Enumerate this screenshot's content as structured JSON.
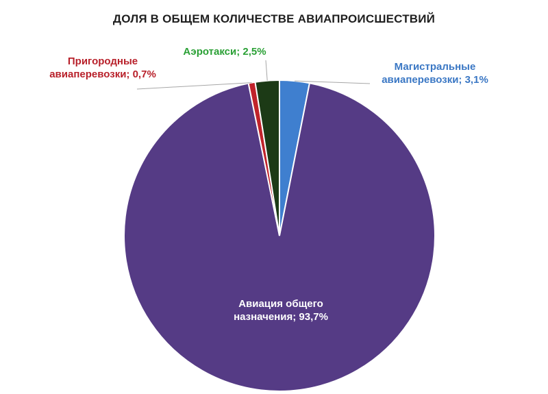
{
  "chart_data": {
    "type": "pie",
    "title": "ДОЛЯ В ОБЩЕМ КОЛИЧЕСТВЕ АВИАПРОИСШЕСТВИЙ",
    "slices": [
      {
        "label_line1": "Магистральные",
        "label_line2": "авиаперевозки; 3,1%",
        "value": 3.1,
        "color": "#3f7fcf",
        "label_color": "#3a77c4"
      },
      {
        "label_line1": "Авиация общего",
        "label_line2": "назначения; 93,7%",
        "value": 93.7,
        "color": "#553b85",
        "label_color": "#ffffff"
      },
      {
        "label_line1": "Пригородные",
        "label_line2": "авиаперевозки; 0,7%",
        "value": 0.7,
        "color": "#c0232b",
        "label_color": "#b8202a"
      },
      {
        "label_line1": "Аэротакси; 2,5%",
        "label_line2": "",
        "value": 2.5,
        "color": "#1c3a16",
        "label_color": "#2aa035"
      }
    ],
    "legend": "none"
  }
}
